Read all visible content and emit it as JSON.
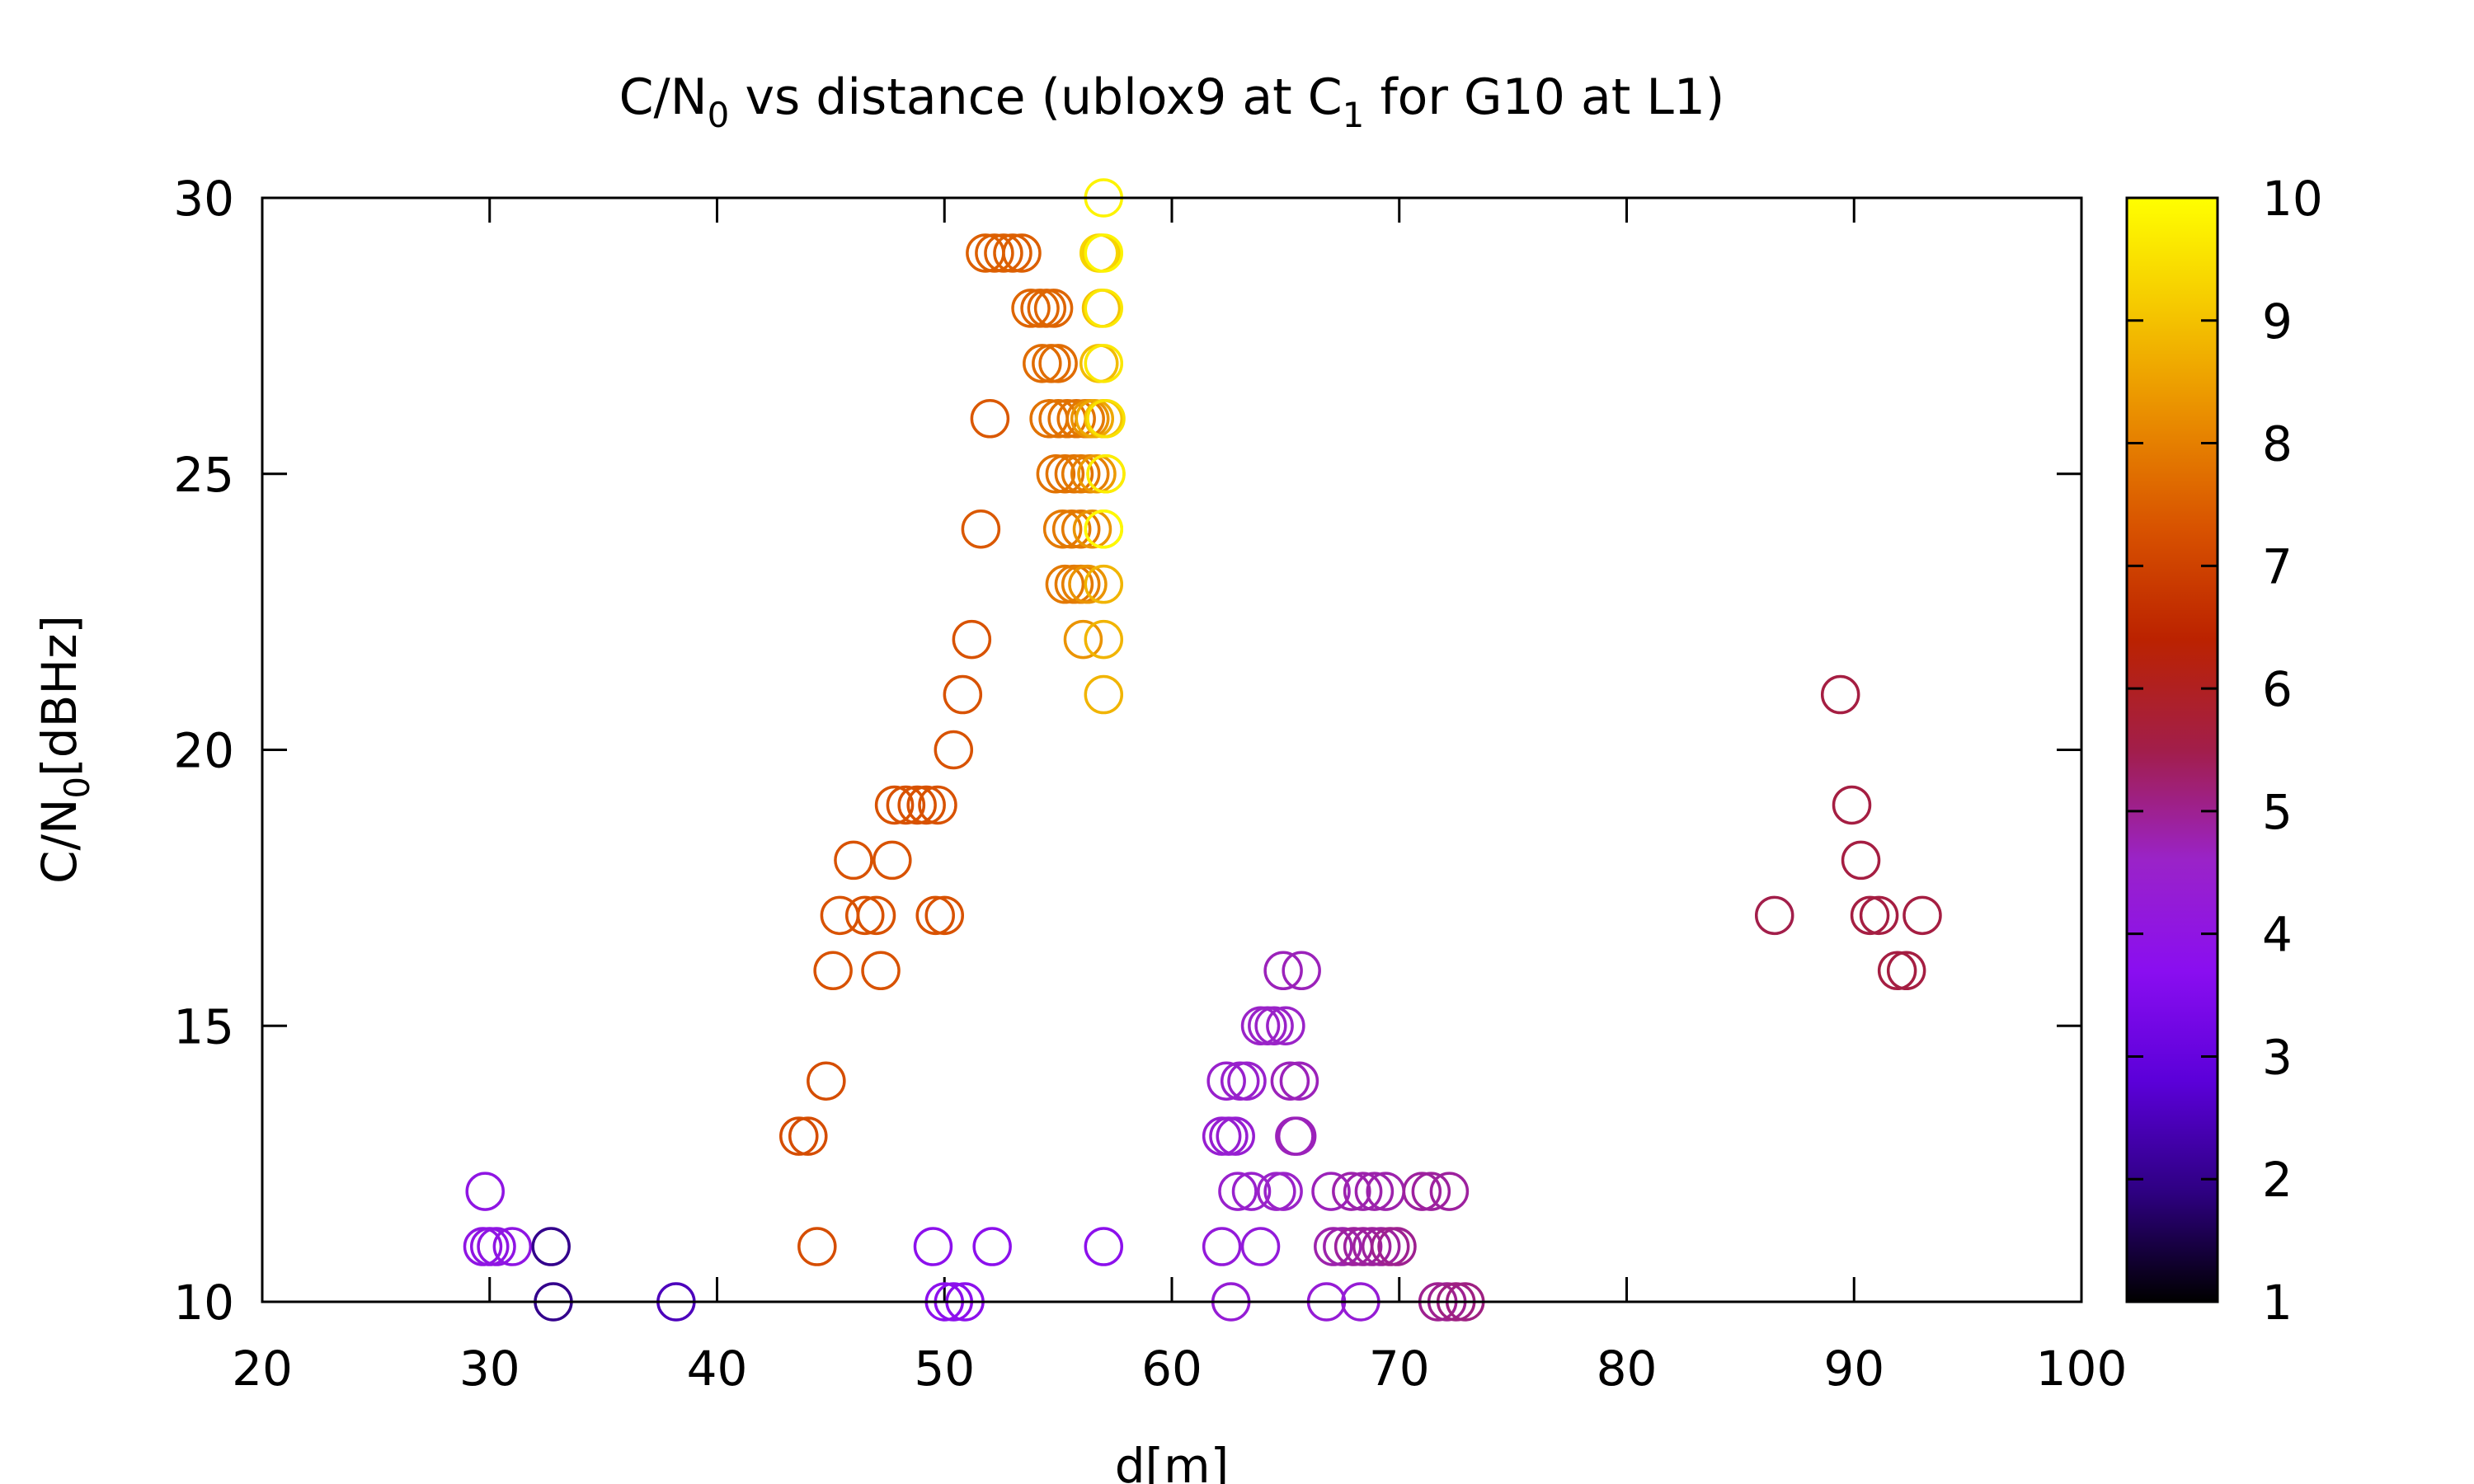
{
  "chart_data": {
    "type": "scatter",
    "title": {
      "prefix": "C/N",
      "sub1": "0",
      "middle": " vs distance (ublox9 at C",
      "sub2": "1",
      "suffix": " for G10 at L1)"
    },
    "xlabel": "d[m]",
    "ylabel": {
      "prefix": "C/N",
      "sub": "0",
      "suffix": "[dBHz]"
    },
    "xlim": [
      20,
      100
    ],
    "ylim": [
      10,
      30
    ],
    "xticks": [
      "20",
      "30",
      "40",
      "50",
      "60",
      "70",
      "80",
      "90",
      "100"
    ],
    "yticks": [
      "10",
      "15",
      "20",
      "25",
      "30"
    ],
    "colorbar": {
      "range": [
        1,
        10
      ],
      "ticks": [
        "1",
        "2",
        "3",
        "4",
        "5",
        "6",
        "7",
        "8",
        "9",
        "10"
      ],
      "palette": [
        "#000000",
        "#2e0082",
        "#5b00d9",
        "#8a0ef0",
        "#9a23c8",
        "#a21e4a",
        "#bb2200",
        "#d85200",
        "#e98c00",
        "#f5c800",
        "#ffff00"
      ]
    },
    "marker": "open-circle",
    "points": [
      [
        29.8,
        12,
        4
      ],
      [
        29.7,
        11,
        4
      ],
      [
        30.0,
        11,
        4
      ],
      [
        30.3,
        11,
        4
      ],
      [
        31.0,
        11,
        4
      ],
      [
        32.7,
        11,
        2
      ],
      [
        32.8,
        10,
        2
      ],
      [
        38.2,
        10,
        2.5
      ],
      [
        50.0,
        10,
        3.8
      ],
      [
        50.4,
        10,
        3.8
      ],
      [
        50.9,
        10,
        3.8
      ],
      [
        49.5,
        11,
        3.8
      ],
      [
        52.1,
        11,
        3.8
      ],
      [
        57.0,
        11,
        3.8
      ],
      [
        44.4,
        11,
        7.2
      ],
      [
        43.6,
        13,
        7.2
      ],
      [
        44.0,
        13,
        7.2
      ],
      [
        44.8,
        14,
        7.2
      ],
      [
        45.1,
        16,
        7.3
      ],
      [
        47.2,
        16,
        7.3
      ],
      [
        45.4,
        17,
        7.3
      ],
      [
        46.5,
        17,
        7.3
      ],
      [
        47.0,
        17,
        7.3
      ],
      [
        49.6,
        17,
        7.3
      ],
      [
        50.0,
        17,
        7.3
      ],
      [
        46.0,
        18,
        7.3
      ],
      [
        47.7,
        18,
        7.3
      ],
      [
        47.8,
        19,
        7.3
      ],
      [
        48.3,
        19,
        7.3
      ],
      [
        48.8,
        19,
        7.3
      ],
      [
        49.2,
        19,
        7.3
      ],
      [
        49.7,
        19,
        7.3
      ],
      [
        50.4,
        20,
        7.3
      ],
      [
        50.8,
        21,
        7.3
      ],
      [
        51.2,
        22,
        7.3
      ],
      [
        51.6,
        24,
        7.4
      ],
      [
        52.0,
        26,
        7.4
      ],
      [
        51.8,
        29,
        7.5
      ],
      [
        52.2,
        29,
        7.5
      ],
      [
        52.6,
        29,
        7.5
      ],
      [
        53.0,
        29,
        7.5
      ],
      [
        53.4,
        29,
        7.5
      ],
      [
        53.8,
        28,
        7.6
      ],
      [
        54.2,
        28,
        7.6
      ],
      [
        54.5,
        28,
        7.6
      ],
      [
        54.8,
        28,
        7.6
      ],
      [
        54.3,
        27,
        7.7
      ],
      [
        54.7,
        27,
        7.7
      ],
      [
        55.0,
        27,
        7.7
      ],
      [
        54.6,
        26,
        7.8
      ],
      [
        55.0,
        26,
        7.8
      ],
      [
        55.4,
        26,
        7.8
      ],
      [
        55.8,
        26,
        7.8
      ],
      [
        56.2,
        26,
        7.9
      ],
      [
        54.9,
        25,
        7.8
      ],
      [
        55.3,
        25,
        7.8
      ],
      [
        55.7,
        25,
        7.8
      ],
      [
        56.0,
        25,
        7.9
      ],
      [
        56.4,
        25,
        8.0
      ],
      [
        55.2,
        24,
        7.9
      ],
      [
        55.6,
        24,
        7.9
      ],
      [
        56.0,
        24,
        7.9
      ],
      [
        55.3,
        23,
        7.9
      ],
      [
        55.7,
        23,
        7.9
      ],
      [
        56.0,
        23,
        8.0
      ],
      [
        56.1,
        22,
        8.3
      ],
      [
        56.4,
        26,
        8.3
      ],
      [
        56.7,
        25,
        8.4
      ],
      [
        56.5,
        24,
        8.3
      ],
      [
        56.3,
        23,
        8.3
      ],
      [
        56.6,
        26,
        8.6
      ],
      [
        56.8,
        27,
        8.9
      ],
      [
        56.9,
        28,
        9.0
      ],
      [
        56.9,
        29,
        9.2
      ],
      [
        57.0,
        26,
        9.0
      ],
      [
        57.1,
        25,
        9.2
      ],
      [
        57.0,
        24,
        9.3
      ],
      [
        57.0,
        23,
        8.8
      ],
      [
        57.0,
        22,
        8.8
      ],
      [
        57.0,
        21,
        8.8
      ],
      [
        56.8,
        29,
        9.3
      ],
      [
        57.0,
        29,
        9.8
      ],
      [
        57.0,
        28,
        9.6
      ],
      [
        57.0,
        27,
        9.6
      ],
      [
        57.1,
        26,
        9.5
      ],
      [
        57.1,
        25,
        9.7
      ],
      [
        57.0,
        24,
        9.9
      ],
      [
        57.0,
        30,
        9.8
      ],
      [
        62.2,
        11,
        4.2
      ],
      [
        62.6,
        10,
        4.3
      ],
      [
        63.9,
        11,
        4.2
      ],
      [
        62.2,
        13,
        4.4
      ],
      [
        62.5,
        13,
        4.4
      ],
      [
        62.8,
        13,
        4.4
      ],
      [
        62.4,
        14,
        4.5
      ],
      [
        63.0,
        14,
        4.5
      ],
      [
        63.3,
        14,
        4.5
      ],
      [
        62.9,
        12,
        4.5
      ],
      [
        63.5,
        12,
        4.5
      ],
      [
        64.6,
        12,
        4.6
      ],
      [
        64.9,
        12,
        4.6
      ],
      [
        63.9,
        15,
        4.6
      ],
      [
        64.2,
        15,
        4.6
      ],
      [
        64.5,
        15,
        4.6
      ],
      [
        65.0,
        15,
        4.6
      ],
      [
        64.9,
        16,
        4.7
      ],
      [
        65.7,
        16,
        4.7
      ],
      [
        65.2,
        14,
        4.7
      ],
      [
        65.6,
        14,
        4.7
      ],
      [
        65.4,
        13,
        4.7
      ],
      [
        65.5,
        13,
        4.7
      ],
      [
        66.8,
        10,
        4.3
      ],
      [
        68.3,
        10,
        4.3
      ],
      [
        67.0,
        12,
        4.7
      ],
      [
        67.9,
        12,
        4.8
      ],
      [
        68.4,
        12,
        4.8
      ],
      [
        68.9,
        12,
        4.8
      ],
      [
        69.4,
        12,
        4.8
      ],
      [
        71.0,
        12,
        4.9
      ],
      [
        71.4,
        12,
        4.9
      ],
      [
        72.2,
        12,
        4.9
      ],
      [
        67.1,
        11,
        4.8
      ],
      [
        67.5,
        11,
        4.8
      ],
      [
        68.0,
        11,
        4.9
      ],
      [
        68.4,
        11,
        4.9
      ],
      [
        68.8,
        11,
        4.9
      ],
      [
        69.2,
        11,
        4.9
      ],
      [
        69.6,
        11,
        5.0
      ],
      [
        69.9,
        11,
        5.0
      ],
      [
        71.7,
        10,
        5.0
      ],
      [
        72.1,
        10,
        5.0
      ],
      [
        72.5,
        10,
        5.1
      ],
      [
        72.9,
        10,
        5.1
      ],
      [
        86.5,
        17,
        5.5
      ],
      [
        89.4,
        21,
        5.6
      ],
      [
        89.9,
        19,
        5.6
      ],
      [
        90.3,
        18,
        5.6
      ],
      [
        90.7,
        17,
        5.6
      ],
      [
        91.1,
        17,
        5.6
      ],
      [
        93.0,
        17,
        5.6
      ],
      [
        91.9,
        16,
        5.6
      ],
      [
        92.3,
        16,
        5.6
      ]
    ]
  }
}
